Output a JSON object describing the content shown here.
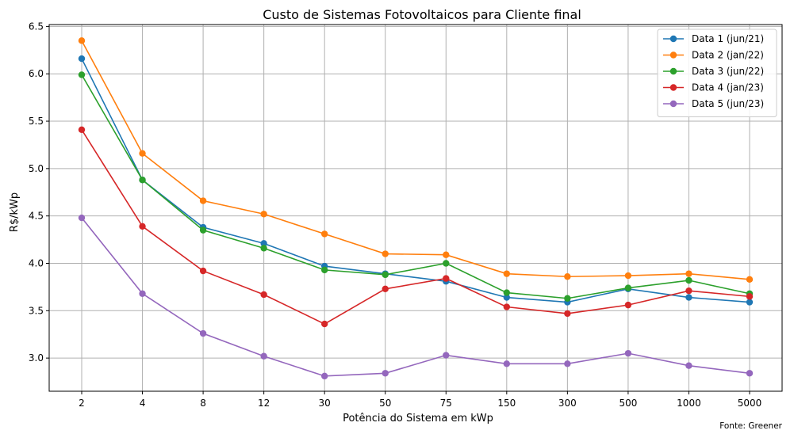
{
  "chart_data": {
    "type": "line",
    "title": "Custo de Sistemas Fotovoltaicos para Cliente final",
    "xlabel": "Potência do Sistema em kWp",
    "ylabel": "R$/kWp",
    "source_note": "Fonte: Greener",
    "categories": [
      "2",
      "4",
      "8",
      "12",
      "30",
      "50",
      "75",
      "150",
      "300",
      "500",
      "1000",
      "5000"
    ],
    "ylim": [
      2.65,
      6.52
    ],
    "yticks": [
      3.0,
      3.5,
      4.0,
      4.5,
      5.0,
      5.5,
      6.0,
      6.5
    ],
    "ytick_labels": [
      "3.0",
      "3.5",
      "4.0",
      "4.5",
      "5.0",
      "5.5",
      "6.0",
      "6.5"
    ],
    "grid": true,
    "legend_position": "top-right",
    "series": [
      {
        "name": "Data 1 (jun/21)",
        "color": "#1f77b4",
        "values": [
          6.16,
          4.88,
          4.38,
          4.21,
          3.97,
          3.89,
          3.81,
          3.64,
          3.59,
          3.73,
          3.64,
          3.59
        ]
      },
      {
        "name": "Data 2 (jan/22)",
        "color": "#ff7f0e",
        "values": [
          6.35,
          5.16,
          4.66,
          4.52,
          4.31,
          4.1,
          4.09,
          3.89,
          3.86,
          3.87,
          3.89,
          3.83
        ]
      },
      {
        "name": "Data 3 (jun/22)",
        "color": "#2ca02c",
        "values": [
          5.99,
          4.88,
          4.35,
          4.16,
          3.93,
          3.88,
          4.0,
          3.69,
          3.63,
          3.74,
          3.82,
          3.68
        ]
      },
      {
        "name": "Data 4 (jan/23)",
        "color": "#d62728",
        "values": [
          5.41,
          4.39,
          3.92,
          3.67,
          3.36,
          3.73,
          3.84,
          3.54,
          3.47,
          3.56,
          3.71,
          3.65
        ]
      },
      {
        "name": "Data 5 (jun/23)",
        "color": "#9467bd",
        "values": [
          4.48,
          3.68,
          3.26,
          3.02,
          2.81,
          2.84,
          3.03,
          2.94,
          2.94,
          3.05,
          2.92,
          2.84
        ]
      }
    ]
  }
}
